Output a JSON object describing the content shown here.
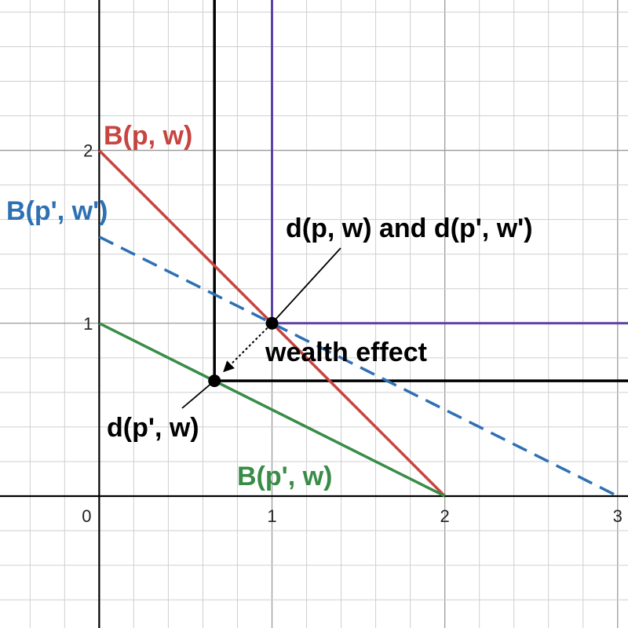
{
  "chart_data": {
    "type": "line",
    "title": "",
    "xlabel": "",
    "ylabel": "",
    "xlim": [
      -0.574,
      3.06
    ],
    "ylim": [
      -0.763,
      2.87
    ],
    "grid": true,
    "x_ticks": [
      "0",
      "1",
      "2",
      "3"
    ],
    "y_ticks": [
      "1",
      "2"
    ],
    "series": [
      {
        "name": "B(p, w)",
        "color": "#c74440",
        "style": "solid",
        "points": [
          [
            0,
            2
          ],
          [
            2,
            0
          ]
        ]
      },
      {
        "name": "B(p', w')",
        "color": "#2d70b3",
        "style": "dashed",
        "points": [
          [
            0,
            1.5
          ],
          [
            3,
            0
          ]
        ]
      },
      {
        "name": "B(p', w)",
        "color": "#388c46",
        "style": "solid",
        "points": [
          [
            0,
            1
          ],
          [
            2,
            0
          ]
        ]
      }
    ],
    "indifference_curves": [
      {
        "color": "#6042a6",
        "corner": [
          1,
          1
        ]
      },
      {
        "color": "#000000",
        "corner": [
          0.667,
          0.667
        ]
      }
    ],
    "points": [
      {
        "label": "d(p, w) and d(p', w')",
        "x": 1,
        "y": 1
      },
      {
        "label": "d(p', w)",
        "x": 0.667,
        "y": 0.667
      }
    ],
    "annotations": [
      {
        "text": "wealth effect",
        "from": [
          1,
          1
        ],
        "to": [
          0.667,
          0.667
        ]
      }
    ],
    "label_colors": {
      "B(p, w)": "#c74440",
      "B(p', w')": "#2d70b3",
      "B(p', w)": "#388c46",
      "text": "#000000"
    }
  }
}
